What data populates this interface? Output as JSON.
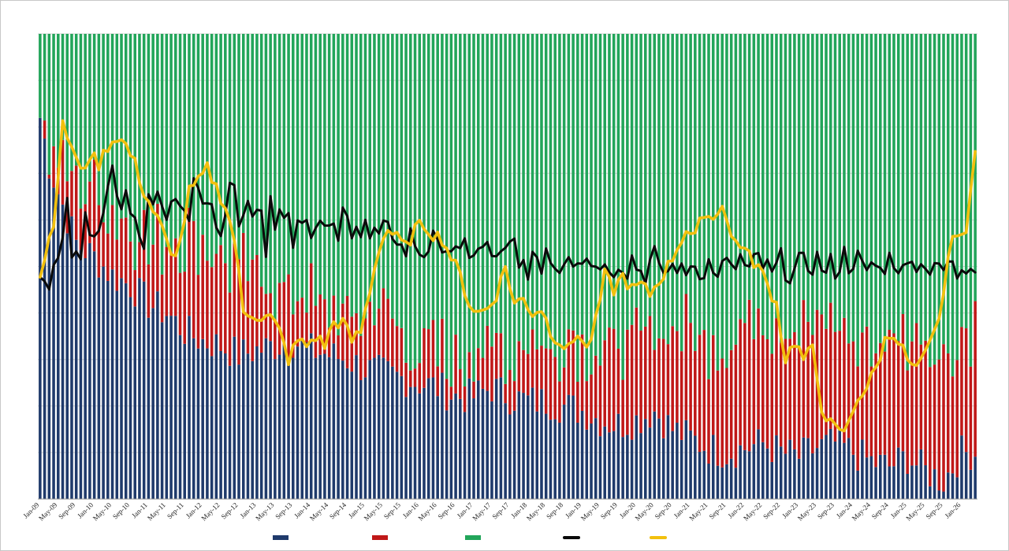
{
  "chart_data": {
    "type": "bar",
    "title": "",
    "xlabel": "",
    "ylabel": "",
    "ylim": [
      0,
      100
    ],
    "grid": true,
    "legend_position": "bottom",
    "stacked": true,
    "x_tick_labels": [
      "Jan-09",
      "May-09",
      "Sep-09",
      "Jan-10",
      "May-10",
      "Sep-10",
      "Jan-11",
      "May-11",
      "Sep-11",
      "Jan-12",
      "May-12",
      "Sep-12",
      "Jan-13",
      "May-13",
      "Sep-13",
      "Jan-14",
      "May-14",
      "Sep-14",
      "Jan-15",
      "May-15",
      "Sep-15",
      "Jan-16",
      "May-16",
      "Sep-16",
      "Jan-17",
      "May-17",
      "Sep-17",
      "Jan-18",
      "May-18",
      "Sep-18",
      "Jan-19",
      "May-19",
      "Sep-19",
      "Jan-20",
      "May-20",
      "Sep-20",
      "Jan-21",
      "May-21",
      "Sep-21",
      "Jan-22",
      "May-22",
      "Sep-22",
      "Jan-23",
      "May-23",
      "Sep-23",
      "Jan-24",
      "May-24",
      "Sep-24",
      "Jan-25",
      "May-25",
      "Sep-25",
      "Jan-26"
    ],
    "periods_per_tick": 4,
    "n_periods": 208,
    "colors": {
      "series1": "#1f3a6b",
      "series2": "#c01818",
      "series3": "#22a55a",
      "line1": "#0a0a0a",
      "line2": "#f2c00e",
      "gridline": "#d6d6d6",
      "bar_gap": "#ffffff"
    },
    "series": [
      {
        "type": "stacked-bar",
        "color_key": "series1",
        "anchors": [
          [
            0,
            82
          ],
          [
            2,
            72
          ],
          [
            4,
            66
          ],
          [
            8,
            55
          ],
          [
            12,
            52
          ],
          [
            16,
            48
          ],
          [
            20,
            46
          ],
          [
            24,
            42
          ],
          [
            28,
            40
          ],
          [
            32,
            36
          ],
          [
            36,
            34
          ],
          [
            40,
            33
          ],
          [
            44,
            31
          ],
          [
            48,
            32
          ],
          [
            52,
            33
          ],
          [
            56,
            34
          ],
          [
            60,
            32
          ],
          [
            64,
            31
          ],
          [
            68,
            30
          ],
          [
            72,
            28
          ],
          [
            76,
            27
          ],
          [
            80,
            26
          ],
          [
            84,
            25
          ],
          [
            88,
            24
          ],
          [
            92,
            22
          ],
          [
            96,
            22
          ],
          [
            100,
            24
          ],
          [
            104,
            22
          ],
          [
            108,
            21
          ],
          [
            112,
            21
          ],
          [
            116,
            20
          ],
          [
            120,
            19
          ],
          [
            124,
            17
          ],
          [
            128,
            16
          ],
          [
            132,
            17
          ],
          [
            136,
            19
          ],
          [
            140,
            15
          ],
          [
            144,
            13
          ],
          [
            148,
            11
          ],
          [
            152,
            10
          ],
          [
            156,
            11
          ],
          [
            160,
            12
          ],
          [
            164,
            10
          ],
          [
            168,
            9
          ],
          [
            172,
            11
          ],
          [
            176,
            12
          ],
          [
            180,
            10
          ],
          [
            184,
            8
          ],
          [
            188,
            7
          ],
          [
            192,
            9
          ],
          [
            196,
            6
          ],
          [
            200,
            4
          ],
          [
            204,
            10
          ],
          [
            207,
            10
          ]
        ],
        "noise": 4
      },
      {
        "type": "stacked-bar",
        "color_key": "series2",
        "anchors": [
          [
            0,
            0
          ],
          [
            4,
            8
          ],
          [
            8,
            12
          ],
          [
            12,
            15
          ],
          [
            16,
            14
          ],
          [
            20,
            14
          ],
          [
            24,
            12
          ],
          [
            28,
            16
          ],
          [
            32,
            20
          ],
          [
            36,
            22
          ],
          [
            40,
            20
          ],
          [
            44,
            18
          ],
          [
            48,
            16
          ],
          [
            52,
            13
          ],
          [
            56,
            12
          ],
          [
            60,
            10
          ],
          [
            64,
            9
          ],
          [
            68,
            10
          ],
          [
            72,
            12
          ],
          [
            76,
            11
          ],
          [
            80,
            9
          ],
          [
            84,
            8
          ],
          [
            88,
            7
          ],
          [
            92,
            8
          ],
          [
            96,
            9
          ],
          [
            100,
            8
          ],
          [
            104,
            10
          ],
          [
            108,
            12
          ],
          [
            112,
            13
          ],
          [
            116,
            14
          ],
          [
            120,
            15
          ],
          [
            124,
            16
          ],
          [
            128,
            18
          ],
          [
            132,
            19
          ],
          [
            136,
            19
          ],
          [
            140,
            21
          ],
          [
            144,
            22
          ],
          [
            148,
            24
          ],
          [
            152,
            26
          ],
          [
            156,
            27
          ],
          [
            160,
            28
          ],
          [
            164,
            27
          ],
          [
            168,
            26
          ],
          [
            172,
            25
          ],
          [
            176,
            24
          ],
          [
            180,
            23
          ],
          [
            184,
            24
          ],
          [
            188,
            26
          ],
          [
            192,
            27
          ],
          [
            196,
            28
          ],
          [
            200,
            29
          ],
          [
            204,
            24
          ],
          [
            207,
            30
          ]
        ],
        "noise": 6
      },
      {
        "type": "stacked-bar-remainder",
        "color_key": "series3"
      },
      {
        "type": "line",
        "color_key": "line1",
        "values": [
          48,
          46,
          44,
          52,
          50,
          55,
          63,
          53,
          54,
          52,
          60,
          56,
          55,
          58,
          62,
          66,
          73,
          64,
          62,
          66,
          62,
          60,
          58,
          54,
          66,
          65,
          66,
          64,
          62,
          62,
          64,
          64,
          63,
          58,
          70,
          66,
          63,
          64,
          62,
          60,
          58,
          63,
          67,
          66,
          58,
          63,
          66,
          62,
          63,
          60,
          54,
          67,
          59,
          62,
          60,
          63,
          55,
          60,
          61,
          60,
          58,
          58,
          59,
          58,
          57,
          60,
          54,
          62,
          60,
          58,
          60,
          57,
          60,
          55,
          58,
          56,
          58,
          58,
          57,
          56,
          54,
          53,
          57,
          55,
          53,
          53,
          54,
          56,
          54,
          55,
          54,
          54,
          53,
          52,
          55,
          53,
          53,
          53,
          54,
          54,
          52,
          53,
          52,
          53,
          54,
          55,
          49,
          51,
          49,
          52,
          50,
          50,
          54,
          51,
          50,
          50,
          51,
          53,
          51,
          52,
          52,
          53,
          51,
          50,
          50,
          52,
          48,
          49,
          51,
          50,
          49,
          52,
          50,
          49,
          48,
          51,
          53,
          49,
          49,
          49,
          50,
          50,
          49,
          48,
          51,
          50,
          49,
          49,
          51,
          48,
          49,
          50,
          51,
          49,
          50,
          52,
          50,
          49,
          51,
          52,
          50,
          50,
          48,
          50,
          52,
          49,
          48,
          49,
          51,
          51,
          50,
          50,
          52,
          50,
          48,
          51,
          49,
          50,
          53,
          50,
          51,
          52,
          50,
          48,
          51,
          50,
          49,
          50,
          52,
          51,
          50,
          49,
          50,
          53,
          50,
          50,
          51,
          49,
          51,
          49,
          49,
          51,
          50,
          48,
          50,
          50,
          51,
          50
        ],
        "smooth_noise": 2
      },
      {
        "type": "line",
        "color_key": "line2",
        "anchors": [
          [
            0,
            48
          ],
          [
            3,
            60
          ],
          [
            5,
            80
          ],
          [
            7,
            76
          ],
          [
            9,
            70
          ],
          [
            11,
            74
          ],
          [
            13,
            72
          ],
          [
            15,
            76
          ],
          [
            17,
            78
          ],
          [
            19,
            76
          ],
          [
            21,
            72
          ],
          [
            23,
            66
          ],
          [
            25,
            62
          ],
          [
            27,
            58
          ],
          [
            29,
            52
          ],
          [
            31,
            55
          ],
          [
            33,
            66
          ],
          [
            35,
            68
          ],
          [
            37,
            71
          ],
          [
            39,
            67
          ],
          [
            41,
            63
          ],
          [
            43,
            56
          ],
          [
            45,
            40
          ],
          [
            47,
            40
          ],
          [
            49,
            39
          ],
          [
            51,
            39
          ],
          [
            53,
            36
          ],
          [
            55,
            30
          ],
          [
            57,
            34
          ],
          [
            59,
            33
          ],
          [
            61,
            35
          ],
          [
            63,
            33
          ],
          [
            65,
            38
          ],
          [
            67,
            38
          ],
          [
            69,
            34
          ],
          [
            71,
            36
          ],
          [
            73,
            45
          ],
          [
            75,
            54
          ],
          [
            77,
            58
          ],
          [
            79,
            56
          ],
          [
            81,
            54
          ],
          [
            83,
            58
          ],
          [
            85,
            59
          ],
          [
            87,
            57
          ],
          [
            89,
            56
          ],
          [
            91,
            52
          ],
          [
            93,
            48
          ],
          [
            95,
            42
          ],
          [
            97,
            40
          ],
          [
            99,
            41
          ],
          [
            101,
            44
          ],
          [
            103,
            50
          ],
          [
            105,
            42
          ],
          [
            107,
            43
          ],
          [
            109,
            40
          ],
          [
            111,
            41
          ],
          [
            113,
            36
          ],
          [
            115,
            34
          ],
          [
            117,
            32
          ],
          [
            119,
            36
          ],
          [
            121,
            32
          ],
          [
            123,
            38
          ],
          [
            125,
            48
          ],
          [
            127,
            45
          ],
          [
            129,
            48
          ],
          [
            131,
            45
          ],
          [
            133,
            46
          ],
          [
            135,
            44
          ],
          [
            137,
            47
          ],
          [
            139,
            50
          ],
          [
            141,
            54
          ],
          [
            143,
            58
          ],
          [
            145,
            56
          ],
          [
            147,
            62
          ],
          [
            149,
            60
          ],
          [
            151,
            64
          ],
          [
            153,
            56
          ],
          [
            155,
            55
          ],
          [
            157,
            52
          ],
          [
            159,
            50
          ],
          [
            161,
            46
          ],
          [
            163,
            42
          ],
          [
            165,
            30
          ],
          [
            167,
            34
          ],
          [
            169,
            30
          ],
          [
            171,
            32
          ],
          [
            173,
            20
          ],
          [
            175,
            16
          ],
          [
            177,
            14
          ],
          [
            179,
            16
          ],
          [
            181,
            22
          ],
          [
            183,
            24
          ],
          [
            185,
            28
          ],
          [
            187,
            34
          ],
          [
            189,
            36
          ],
          [
            191,
            32
          ],
          [
            193,
            28
          ],
          [
            195,
            29
          ],
          [
            197,
            33
          ],
          [
            199,
            38
          ],
          [
            201,
            52
          ],
          [
            203,
            58
          ],
          [
            205,
            56
          ],
          [
            207,
            76
          ]
        ],
        "smooth_noise": 1.5
      }
    ]
  },
  "legend": {
    "items": [
      {
        "label": "",
        "color_key": "series1",
        "kind": "bar"
      },
      {
        "label": "",
        "color_key": "series2",
        "kind": "bar"
      },
      {
        "label": "",
        "color_key": "series3",
        "kind": "bar"
      },
      {
        "label": "",
        "color_key": "line1",
        "kind": "line"
      },
      {
        "label": "",
        "color_key": "line2",
        "kind": "line"
      }
    ]
  }
}
